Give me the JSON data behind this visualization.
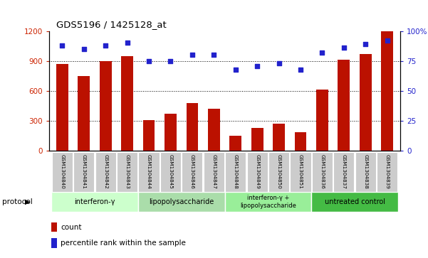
{
  "title": "GDS5196 / 1425128_at",
  "samples": [
    "GSM1304840",
    "GSM1304841",
    "GSM1304842",
    "GSM1304843",
    "GSM1304844",
    "GSM1304845",
    "GSM1304846",
    "GSM1304847",
    "GSM1304848",
    "GSM1304849",
    "GSM1304850",
    "GSM1304851",
    "GSM1304836",
    "GSM1304837",
    "GSM1304838",
    "GSM1304839"
  ],
  "counts": [
    870,
    750,
    895,
    950,
    310,
    370,
    480,
    420,
    150,
    230,
    270,
    185,
    615,
    910,
    970,
    1200
  ],
  "percentiles": [
    88,
    85,
    88,
    90,
    75,
    75,
    80,
    80,
    68,
    71,
    73,
    68,
    82,
    86,
    89,
    92
  ],
  "groups": [
    {
      "label": "interferon-γ",
      "start": 0,
      "end": 4
    },
    {
      "label": "lipopolysaccharide",
      "start": 4,
      "end": 8
    },
    {
      "label": "interferon-γ +\nlipopolysaccharide",
      "start": 8,
      "end": 12
    },
    {
      "label": "untreated control",
      "start": 12,
      "end": 16
    }
  ],
  "group_colors": [
    "#ccffcc",
    "#aaddaa",
    "#88ee88",
    "#44bb44"
  ],
  "ylim_left": [
    0,
    1200
  ],
  "ylim_right": [
    0,
    100
  ],
  "yticks_left": [
    0,
    300,
    600,
    900,
    1200
  ],
  "ytick_labels_left": [
    "0",
    "300",
    "600",
    "900",
    "1200"
  ],
  "yticks_right": [
    0,
    25,
    50,
    75,
    100
  ],
  "ytick_labels_right": [
    "0",
    "25",
    "50",
    "75",
    "100%"
  ],
  "bar_color": "#bb1100",
  "dot_color": "#2222cc",
  "bg_color": "#ffffff",
  "plot_bg": "#ffffff",
  "grid_color": "#000000",
  "ylabel_left_color": "#cc2200",
  "ylabel_right_color": "#2222cc",
  "bar_width": 0.55,
  "protocol_label": "protocol",
  "legend_count": "count",
  "legend_percentile": "percentile rank within the sample",
  "label_bg": "#cccccc"
}
